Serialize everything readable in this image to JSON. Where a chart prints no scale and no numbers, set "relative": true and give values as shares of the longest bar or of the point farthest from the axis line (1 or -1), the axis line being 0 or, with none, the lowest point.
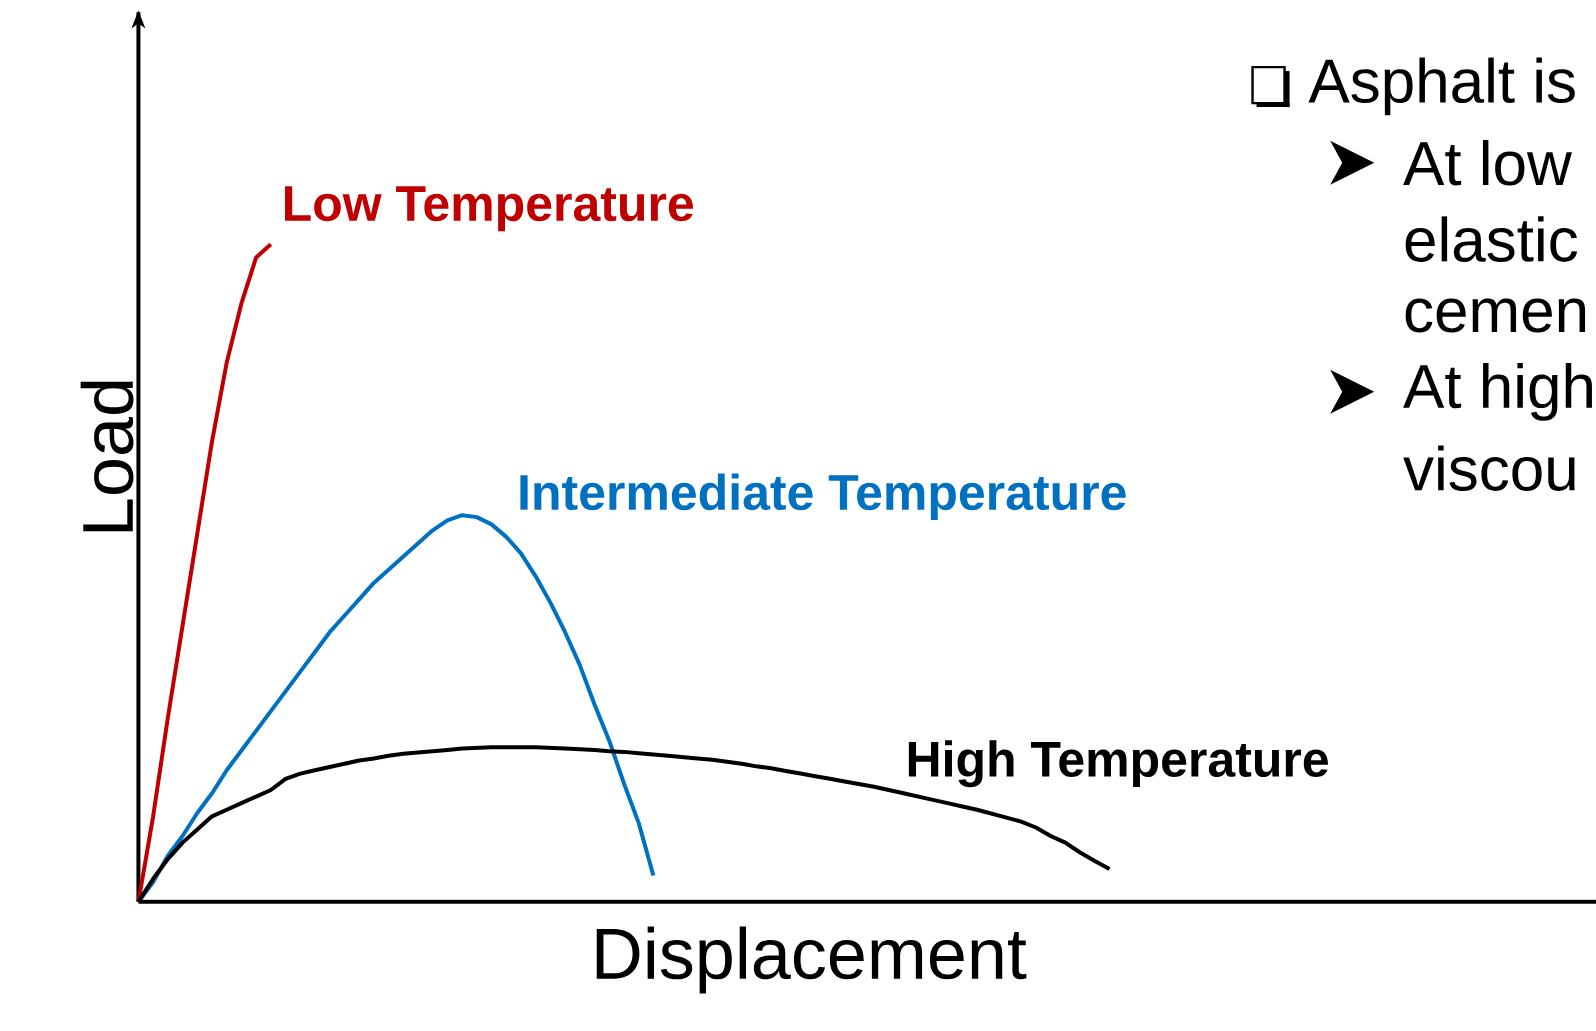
{
  "chart_data": {
    "type": "line",
    "relative": true,
    "xlabel": "Displacement",
    "ylabel": "Load",
    "legend": false,
    "marker": "none",
    "line_style": "solid",
    "categories": [
      null,
      null,
      null,
      null,
      null,
      null,
      null,
      null,
      null,
      null,
      null,
      null,
      null,
      null,
      null,
      null,
      null,
      null,
      null,
      null,
      null,
      null,
      null,
      null,
      null,
      null,
      null,
      null,
      null,
      null,
      null,
      null,
      null,
      null,
      null,
      null,
      null,
      null,
      null,
      null,
      null,
      null,
      null,
      null,
      null,
      null,
      null,
      null,
      null,
      null,
      null,
      null,
      null,
      null,
      null,
      null,
      null,
      null,
      null,
      null,
      null,
      null,
      null,
      null,
      null,
      null,
      null
    ],
    "series": [
      {
        "name": "Low Temperature",
        "color": "#c00000",
        "values": [
          0,
          0.13,
          0.28,
          0.42,
          0.56,
          0.7,
          0.82,
          0.91,
          0.98,
          1,
          null,
          null,
          null,
          null,
          null,
          null,
          null,
          null,
          null,
          null,
          null,
          null,
          null,
          null,
          null,
          null,
          null,
          null,
          null,
          null,
          null,
          null,
          null,
          null,
          null,
          null,
          null,
          null,
          null,
          null,
          null,
          null,
          null,
          null,
          null,
          null,
          null,
          null,
          null,
          null,
          null,
          null,
          null,
          null,
          null,
          null,
          null,
          null,
          null,
          null,
          null,
          null,
          null,
          null,
          null,
          null,
          null
        ]
      },
      {
        "name": "Intermediate Temperature",
        "color": "#0070c0",
        "values": [
          0,
          0.03,
          0.07,
          0.1,
          0.135,
          0.165,
          0.2,
          0.23,
          0.26,
          0.29,
          0.32,
          0.35,
          0.38,
          0.41,
          0.435,
          0.46,
          0.485,
          0.505,
          0.525,
          0.545,
          0.565,
          0.58,
          0.588,
          0.585,
          0.574,
          0.555,
          0.53,
          0.495,
          0.455,
          0.41,
          0.36,
          0.3,
          0.245,
          0.18,
          0.12,
          0.04,
          null,
          null,
          null,
          null,
          null,
          null,
          null,
          null,
          null,
          null,
          null,
          null,
          null,
          null,
          null,
          null,
          null,
          null,
          null,
          null,
          null,
          null,
          null,
          null,
          null,
          null,
          null,
          null,
          null,
          null,
          null
        ]
      },
      {
        "name": "High Temperature",
        "color": "#000000",
        "values": [
          0,
          0.035,
          0.065,
          0.09,
          0.11,
          0.13,
          0.14,
          0.15,
          0.16,
          0.17,
          0.187,
          0.195,
          0.2,
          0.205,
          0.21,
          0.215,
          0.218,
          0.222,
          0.225,
          0.227,
          0.229,
          0.231,
          0.233,
          0.234,
          0.235,
          0.235,
          0.235,
          0.235,
          0.234,
          0.233,
          0.232,
          0.231,
          0.229,
          0.228,
          0.226,
          0.224,
          0.222,
          0.22,
          0.218,
          0.216,
          0.213,
          0.21,
          0.206,
          0.203,
          0.199,
          0.195,
          0.191,
          0.187,
          0.183,
          0.179,
          0.175,
          0.17,
          0.165,
          0.16,
          0.155,
          0.15,
          0.145,
          0.14,
          0.134,
          0.128,
          0.122,
          0.113,
          0.1,
          0.09,
          0.075,
          0.062,
          0.05
        ]
      }
    ],
    "annotations": [
      "Asphalt is",
      "At low",
      "elastic",
      "cemen",
      "At high",
      "viscou"
    ]
  }
}
